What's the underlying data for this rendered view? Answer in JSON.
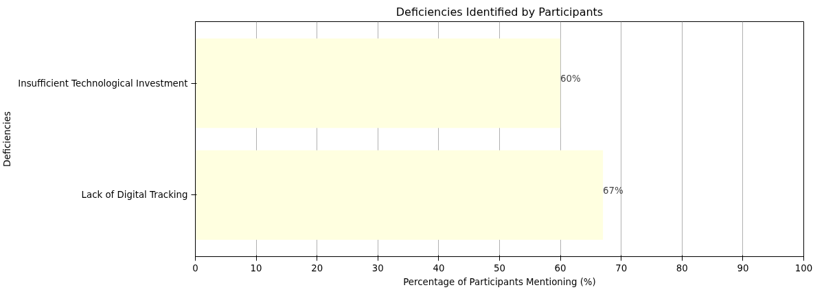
{
  "chart_data": {
    "type": "bar",
    "orientation": "horizontal",
    "title": "Deficiencies Identified by Participants",
    "xlabel": "Percentage of Participants Mentioning (%)",
    "ylabel": "Deficiencies",
    "categories": [
      "Insufficient Technological Investment",
      "Lack of Digital Tracking"
    ],
    "values": [
      60,
      67
    ],
    "color": "#ffffe0",
    "value_labels": [
      "60%",
      "67%"
    ],
    "xlim": [
      0,
      100
    ],
    "xticks": [
      0,
      10,
      20,
      30,
      40,
      50,
      60,
      70,
      80,
      90,
      100
    ],
    "grid": "x"
  }
}
